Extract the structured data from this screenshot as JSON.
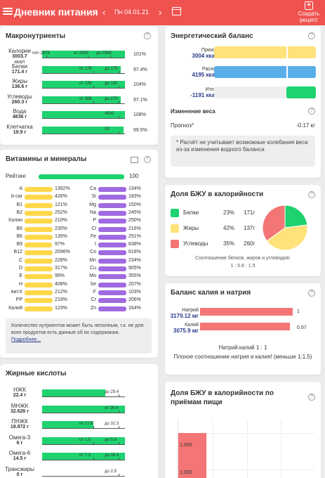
{
  "header": {
    "title": "Дневник питания",
    "date": "Пн 04.01.21",
    "prev": "‹",
    "next": "›",
    "create_line1": "Создать",
    "create_line2": "рецепт",
    "create_icon": "+",
    "bg_color": "#ef5350"
  },
  "macros": {
    "title": "Макронутриенты",
    "help": "?",
    "rows": [
      {
        "name": "Калории",
        "value": "3003.7",
        "unit": "ккал",
        "fill": 1.0,
        "marks": [
          "min 2878",
          "от 2933",
          "до 2988"
        ],
        "pct": "101%"
      },
      {
        "name": "Белки",
        "value": "171.4 г",
        "unit": "",
        "fill": 0.95,
        "marks": [
          "от 176",
          "до 179"
        ],
        "pct": "97.4%"
      },
      {
        "name": "Жиры",
        "value": "136.6 г",
        "unit": "",
        "fill": 1.0,
        "marks": [
          "от 129",
          "до 132"
        ],
        "pct": "104%"
      },
      {
        "name": "Углеводы",
        "value": "260.3 г",
        "unit": "",
        "fill": 0.95,
        "marks": [
          "от 268",
          "до 273"
        ],
        "pct": "97.1%"
      },
      {
        "name": "Вода",
        "value": "4836 г",
        "unit": "",
        "fill": 1.0,
        "marks": [
          "4500"
        ],
        "pct": "108%"
      },
      {
        "name": "Клетчатка",
        "value": "19.9 г",
        "unit": "",
        "fill": 0.98,
        "marks": [
          "20"
        ],
        "pct": "99.5%"
      }
    ]
  },
  "vitamins": {
    "title": "Витамины и минералы",
    "help": "?",
    "rating_label": "Рейтинг",
    "rating_value": "100",
    "rating": 1.0,
    "left": [
      {
        "n": "A",
        "v": "1392%",
        "f": 1.0
      },
      {
        "n": "b-car",
        "v": "426%",
        "f": 1.0
      },
      {
        "n": "B1",
        "v": "121%",
        "f": 1.0
      },
      {
        "n": "B2",
        "v": "252%",
        "f": 1.0
      },
      {
        "n": "Холин",
        "v": "210%",
        "f": 1.0
      },
      {
        "n": "B5",
        "v": "235%",
        "f": 1.0
      },
      {
        "n": "B6",
        "v": "135%",
        "f": 1.0
      },
      {
        "n": "B9",
        "v": "97%",
        "f": 0.97
      },
      {
        "n": "B12",
        "v": "2096%",
        "f": 1.0
      },
      {
        "n": "C",
        "v": "228%",
        "f": 1.0
      },
      {
        "n": "D",
        "v": "317%",
        "f": 1.0
      },
      {
        "n": "E",
        "v": "99%",
        "f": 0.99
      },
      {
        "n": "H",
        "v": "408%",
        "f": 1.0
      },
      {
        "n": "вит.К",
        "v": "212%",
        "f": 1.0
      },
      {
        "n": "PP",
        "v": "219%",
        "f": 1.0
      },
      {
        "n": "Калий",
        "v": "123%",
        "f": 1.0
      }
    ],
    "right": [
      {
        "n": "Ca",
        "v": "134%",
        "f": 1.0
      },
      {
        "n": "Si",
        "v": "183%",
        "f": 1.0
      },
      {
        "n": "Mg",
        "v": "150%",
        "f": 1.0
      },
      {
        "n": "Na",
        "v": "245%",
        "f": 1.0
      },
      {
        "n": "P",
        "v": "250%",
        "f": 1.0
      },
      {
        "n": "Cl",
        "v": "216%",
        "f": 1.0
      },
      {
        "n": "Fe",
        "v": "251%",
        "f": 1.0
      },
      {
        "n": "I",
        "v": "638%",
        "f": 1.0
      },
      {
        "n": "Co",
        "v": "618%",
        "f": 1.0
      },
      {
        "n": "Mn",
        "v": "234%",
        "f": 1.0
      },
      {
        "n": "Cu",
        "v": "905%",
        "f": 1.0
      },
      {
        "n": "Mo",
        "v": "355%",
        "f": 1.0
      },
      {
        "n": "Se",
        "v": "207%",
        "f": 1.0
      },
      {
        "n": "F",
        "v": "103%",
        "f": 1.0
      },
      {
        "n": "Cr",
        "v": "206%",
        "f": 1.0
      },
      {
        "n": "Zn",
        "v": "164%",
        "f": 1.0
      }
    ],
    "note_text": "Количество нутриентов может быть неполным, т.к. не для всех продуктов есть данные об их содержании.",
    "note_link": "Подробнее..."
  },
  "fatty": {
    "title": "Жирные кислоты",
    "rows": [
      {
        "name": "НЖК",
        "value": "22.4 г",
        "fill": 0.76,
        "marks": [
          "до 29.4"
        ]
      },
      {
        "name": "МНЖК",
        "value": "32.626 г",
        "fill": 1.0,
        "marks": [
          "от 26.4"
        ]
      },
      {
        "name": "ПНЖК",
        "value": "19.872 г",
        "fill": 0.62,
        "marks": [
          "от 17.6",
          "до 32.3"
        ]
      },
      {
        "name": "Омега-3",
        "value": "6 г",
        "fill": 1.0,
        "marks": [
          "от 1.5",
          "до 5.9"
        ]
      },
      {
        "name": "Омега-6",
        "value": "14.5 г",
        "fill": 1.0,
        "marks": [
          "от 7.3",
          "до 26.4"
        ]
      },
      {
        "name": "Трансжиры",
        "value": "0 г",
        "fill": 0.0,
        "marks": [
          "до 2.9"
        ]
      }
    ]
  },
  "energy": {
    "title": "Энергетический баланс",
    "help": "?",
    "in_label": "Приход",
    "in_value": "3004 ккал",
    "out_label": "Расход",
    "out_value": "4195 ккал",
    "total_label": "Итого",
    "total_value": "-1191 ккал",
    "weight_title": "Изменение веса",
    "forecast_label": "Прогноз*",
    "forecast_value": "-0.17 кг",
    "note": "* Расчёт не учитывает возможные колебания веса из-за изменения водного баланса"
  },
  "bju": {
    "title": "Доля БЖУ в калорийности",
    "help": "?",
    "items": [
      {
        "name": "Белки",
        "pct": "23%",
        "grams": "171г",
        "color": "#1ed26f",
        "share": 23
      },
      {
        "name": "Жиры",
        "pct": "42%",
        "grams": "137г",
        "color": "#ffe27a",
        "share": 42
      },
      {
        "name": "Углеводы",
        "pct": "35%",
        "grams": "260г",
        "color": "#f47575",
        "share": 35
      }
    ],
    "ratio_text": "Соотношение белков, жиров и углеводов:",
    "ratio_value": "1 : 0.8 : 1.5"
  },
  "kna": {
    "title": "Баланс калия и натрия",
    "help": "?",
    "na_label": "Натрий",
    "na_value": "3179.12 мг",
    "na_ratio": "1",
    "k_label": "Калий",
    "k_value": "3075.9 мг",
    "k_ratio": "0.97",
    "ratio_line": "Натрий:калий 1 : 1",
    "warning": "Плохое соотношение натрия и калия! (меньше 1:1,5)"
  },
  "meals": {
    "title": "Доля БЖУ в калорийности по приёмам пищи",
    "help": "?",
    "ticks": [
      "1,500",
      "1,000"
    ]
  }
}
